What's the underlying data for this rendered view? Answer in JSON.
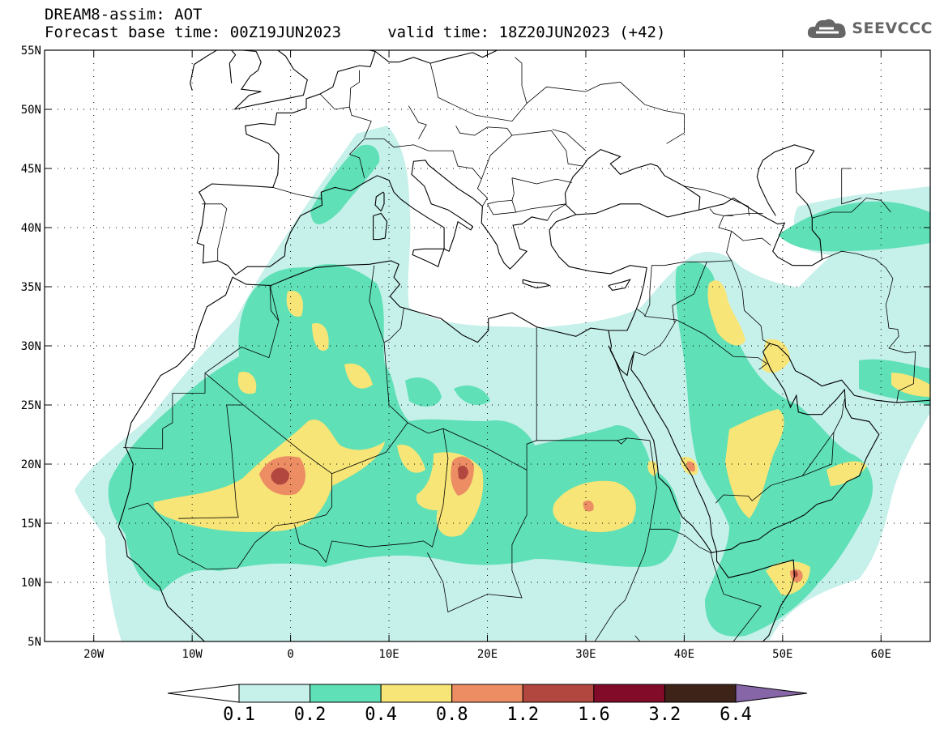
{
  "header": {
    "line1": "DREAM8-assim: AOT",
    "line2": "Forecast base time: 00Z19JUN2023     valid time: 18Z20JUN2023 (+42)"
  },
  "logo": {
    "icon": "cloud-icon",
    "text": "SEEVCCC"
  },
  "map": {
    "lon_range": [
      -25,
      65
    ],
    "lat_range": [
      5,
      55
    ],
    "x_ticks": [
      {
        "lon": -20,
        "label": "20W"
      },
      {
        "lon": -10,
        "label": "10W"
      },
      {
        "lon": 0,
        "label": "0"
      },
      {
        "lon": 10,
        "label": "10E"
      },
      {
        "lon": 20,
        "label": "20E"
      },
      {
        "lon": 30,
        "label": "30E"
      },
      {
        "lon": 40,
        "label": "40E"
      },
      {
        "lon": 50,
        "label": "50E"
      },
      {
        "lon": 60,
        "label": "60E"
      }
    ],
    "y_ticks": [
      {
        "lat": 55,
        "label": "55N"
      },
      {
        "lat": 50,
        "label": "50N"
      },
      {
        "lat": 45,
        "label": "45N"
      },
      {
        "lat": 40,
        "label": "40N"
      },
      {
        "lat": 35,
        "label": "35N"
      },
      {
        "lat": 30,
        "label": "30N"
      },
      {
        "lat": 25,
        "label": "25N"
      },
      {
        "lat": 20,
        "label": "20N"
      },
      {
        "lat": 15,
        "label": "15N"
      },
      {
        "lat": 10,
        "label": "10N"
      },
      {
        "lat": 5,
        "label": "5N"
      }
    ]
  },
  "colorbar": {
    "colors": [
      "#ffffff",
      "#c6f0ea",
      "#5fe0b6",
      "#f7e577",
      "#ec8d64",
      "#b1473e",
      "#820b2a",
      "#3e2418",
      "#8766a8"
    ],
    "labels": [
      "0.1",
      "0.2",
      "0.4",
      "0.8",
      "1.2",
      "1.6",
      "3.2",
      "6.4"
    ]
  },
  "colors": {
    "lvl_0_1": "#c6f0ea",
    "lvl_0_2": "#5fe0b6",
    "lvl_0_4": "#f7e577",
    "lvl_0_8": "#ec8d64",
    "lvl_1_2": "#b1473e"
  }
}
